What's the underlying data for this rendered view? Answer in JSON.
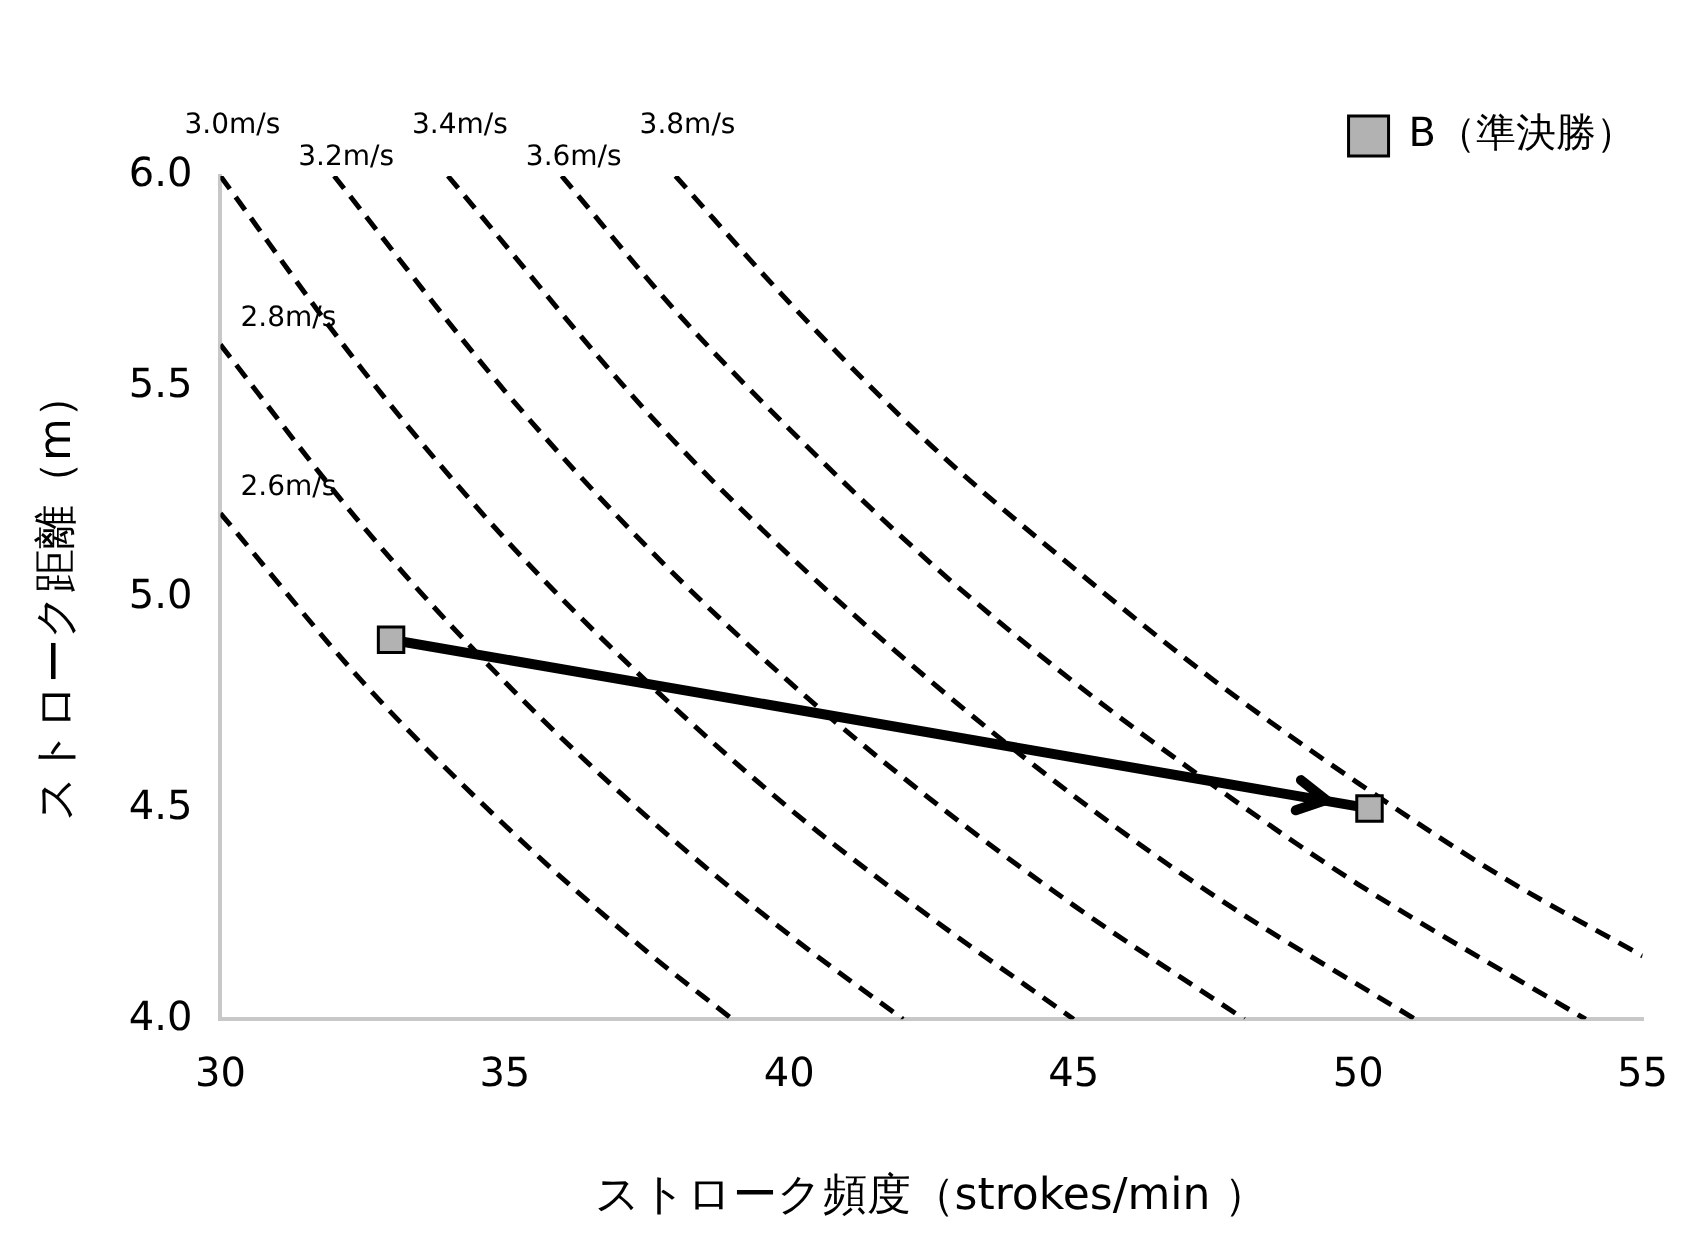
{
  "chart_data": {
    "type": "line",
    "xlabel": "ストローク頻度（strokes/min ）",
    "ylabel": "ストローク距離（m）",
    "xlim": [
      30,
      55
    ],
    "xticks": [
      30,
      35,
      40,
      45,
      50,
      55
    ],
    "ylim": [
      4.0,
      6.0
    ],
    "yticks": [
      {
        "value": 4.0,
        "label": "4.0"
      },
      {
        "value": 4.5,
        "label": "4.5"
      },
      {
        "value": 5.0,
        "label": "5.0"
      },
      {
        "value": 5.5,
        "label": "5.5"
      },
      {
        "value": 6.0,
        "label": "6.0"
      }
    ],
    "grid": false,
    "legend": "top right",
    "series": [
      {
        "name": "2.6m/s",
        "color": "#000000",
        "line_style": "dashed",
        "marker": "none",
        "x": [
          30,
          32.5,
          35,
          37.5,
          39
        ],
        "values": [
          5.2,
          4.8,
          4.46,
          4.16,
          4.0
        ]
      },
      {
        "name": "2.8m/s",
        "color": "#000000",
        "line_style": "dashed",
        "marker": "none",
        "x": [
          30,
          32.5,
          35,
          37.5,
          40,
          42
        ],
        "values": [
          5.6,
          5.17,
          4.8,
          4.48,
          4.2,
          4.0
        ]
      },
      {
        "name": "3.0m/s",
        "color": "#000000",
        "line_style": "dashed",
        "marker": "none",
        "x": [
          30,
          32.5,
          35,
          37.5,
          40,
          42.5,
          45
        ],
        "values": [
          6.0,
          5.54,
          5.14,
          4.8,
          4.5,
          4.24,
          4.0
        ]
      },
      {
        "name": "3.2m/s",
        "color": "#000000",
        "line_style": "dashed",
        "marker": "none",
        "x": [
          32,
          35,
          37.5,
          40,
          42.5,
          45,
          48
        ],
        "values": [
          6.0,
          5.49,
          5.12,
          4.8,
          4.52,
          4.27,
          4.0
        ]
      },
      {
        "name": "3.4m/s",
        "color": "#000000",
        "line_style": "dashed",
        "marker": "none",
        "x": [
          34,
          37.5,
          40,
          42.5,
          45,
          47.5,
          51
        ],
        "values": [
          6.0,
          5.44,
          5.1,
          4.8,
          4.53,
          4.29,
          4.0
        ]
      },
      {
        "name": "3.6m/s",
        "color": "#000000",
        "line_style": "dashed",
        "marker": "none",
        "x": [
          36,
          38,
          40,
          42.5,
          45,
          47.5,
          50,
          54
        ],
        "values": [
          6.0,
          5.68,
          5.4,
          5.08,
          4.8,
          4.55,
          4.32,
          4.0
        ]
      },
      {
        "name": "3.8m/s",
        "color": "#000000",
        "line_style": "dashed",
        "marker": "none",
        "x": [
          38,
          40,
          42.5,
          45,
          47.5,
          50,
          52.5,
          55
        ],
        "values": [
          6.0,
          5.7,
          5.36,
          5.07,
          4.8,
          4.56,
          4.34,
          4.15
        ]
      },
      {
        "name": "B（準決勝）",
        "color": "#b2b2b2",
        "line_style": "solid",
        "marker": "square",
        "x": [
          33,
          50.2
        ],
        "values": [
          4.9,
          4.5
        ]
      }
    ]
  }
}
